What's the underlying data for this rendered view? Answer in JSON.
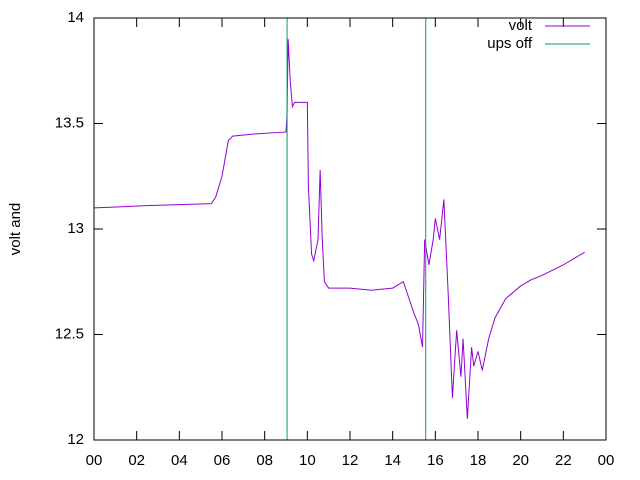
{
  "chart_data": {
    "type": "line",
    "ylabel": "volt and",
    "xlim": [
      0,
      24
    ],
    "xticks": [
      {
        "value": 0,
        "label": "00"
      },
      {
        "value": 2,
        "label": "02"
      },
      {
        "value": 4,
        "label": "04"
      },
      {
        "value": 6,
        "label": "06"
      },
      {
        "value": 8,
        "label": "08"
      },
      {
        "value": 10,
        "label": "10"
      },
      12,
      14,
      16,
      18,
      20,
      22,
      {
        "value": 24,
        "label": "00"
      }
    ],
    "ylim": [
      12,
      14
    ],
    "yticks": [
      12,
      12.5,
      13,
      13.5,
      14
    ],
    "legend": "upper right",
    "series": [
      {
        "name": "volt",
        "color": "#9400d3",
        "x": [
          0,
          2.3,
          5.5,
          5.7,
          6.0,
          6.3,
          6.5,
          7.5,
          9.0,
          9.05,
          9.1,
          9.2,
          9.3,
          9.4,
          10.0,
          10.05,
          10.2,
          10.3,
          10.5,
          10.6,
          10.7,
          10.8,
          11,
          12,
          13,
          14,
          14.5,
          14.8,
          15.0,
          15.2,
          15.4,
          15.5,
          15.7,
          15.9,
          16.0,
          16.2,
          16.4,
          16.6,
          16.8,
          17.0,
          17.2,
          17.3,
          17.5,
          17.7,
          17.8,
          18.0,
          18.2,
          18.5,
          18.8,
          19.3,
          20,
          20.5,
          21,
          22,
          23
        ],
        "values": [
          13.1,
          13.11,
          13.12,
          13.15,
          13.25,
          13.42,
          13.44,
          13.45,
          13.46,
          13.55,
          13.9,
          13.7,
          13.58,
          13.6,
          13.6,
          13.2,
          12.88,
          12.85,
          12.95,
          13.28,
          12.95,
          12.75,
          12.72,
          12.72,
          12.71,
          12.72,
          12.75,
          12.66,
          12.6,
          12.55,
          12.44,
          12.95,
          12.83,
          12.95,
          13.05,
          12.95,
          13.14,
          12.7,
          12.2,
          12.52,
          12.3,
          12.48,
          12.1,
          12.44,
          12.35,
          12.42,
          12.33,
          12.48,
          12.58,
          12.67,
          12.73,
          12.76,
          12.78,
          12.83,
          12.89
        ]
      },
      {
        "name": "ups off",
        "color": "#009e73",
        "x": [
          0,
          9.05,
          9.05,
          15.55,
          15.55,
          23
        ],
        "values": [
          12,
          12,
          14,
          14,
          12,
          12
        ]
      }
    ]
  }
}
